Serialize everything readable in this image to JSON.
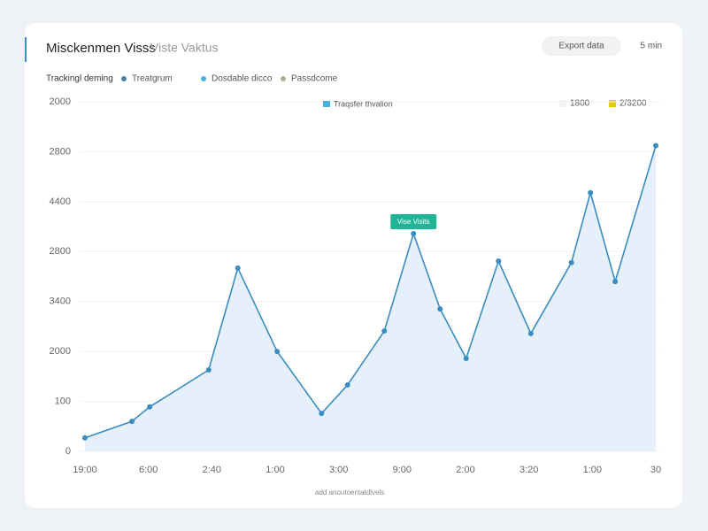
{
  "header": {
    "title": "Misckenmen Visss",
    "subtitle": "Viste Vaktus",
    "button": "Export data",
    "refresh": "5 min",
    "filter_label": "Trackingl deming",
    "filters": [
      {
        "label": "Treatgrum",
        "color": "#4a7fa8"
      },
      {
        "label": "Dosdable dicco",
        "color": "#45b3e0"
      },
      {
        "label": "Passdcome",
        "color": "#b7ad9e"
      }
    ],
    "extra_legend": [
      {
        "label": "1800",
        "color": "#f1f3f5"
      },
      {
        "label": "2/3200",
        "color": "#e3c81c"
      }
    ],
    "footer": "add anoutoentatdlvels"
  },
  "chart_data": {
    "type": "line",
    "annotation": "Vise Visits",
    "x": [
      0,
      0.74,
      1.02,
      1.95,
      2.41,
      3.03,
      3.73,
      4.14,
      4.72,
      5.18,
      5.6,
      6.01,
      6.52,
      7.03,
      7.67,
      7.97,
      8.36,
      9
    ],
    "series": [
      {
        "name": "Traqsfer thvalion",
        "color": "#3b8dc0",
        "fill": "#e6f0fb",
        "values": [
          27,
          60,
          89,
          163,
          367,
          200,
          76,
          133,
          241,
          436,
          285,
          186,
          381,
          236,
          378,
          518,
          340,
          612
        ]
      }
    ],
    "xlim": [
      0,
      9
    ],
    "xticks": [
      {
        "value": 0,
        "label": "19:00"
      },
      {
        "value": 1,
        "label": "6:00"
      },
      {
        "value": 2,
        "label": "2:40"
      },
      {
        "value": 3,
        "label": "1:00"
      },
      {
        "value": 4,
        "label": "3:00"
      },
      {
        "value": 5,
        "label": "9:00"
      },
      {
        "value": 6,
        "label": "2:00"
      },
      {
        "value": 7,
        "label": "3:20"
      },
      {
        "value": 8,
        "label": "1:00"
      },
      {
        "value": 9,
        "label": "30"
      }
    ],
    "ylim": [
      0,
      700
    ],
    "yticks": [
      0,
      100,
      {
        "value": 200,
        "label": "2000"
      },
      {
        "value": 300,
        "label": "3400"
      },
      {
        "value": 400,
        "label": "2800"
      },
      {
        "value": 500,
        "label": "4400"
      },
      {
        "value": 600,
        "label": "2800"
      },
      {
        "value": 700,
        "label": "2000"
      }
    ],
    "grid": true
  }
}
